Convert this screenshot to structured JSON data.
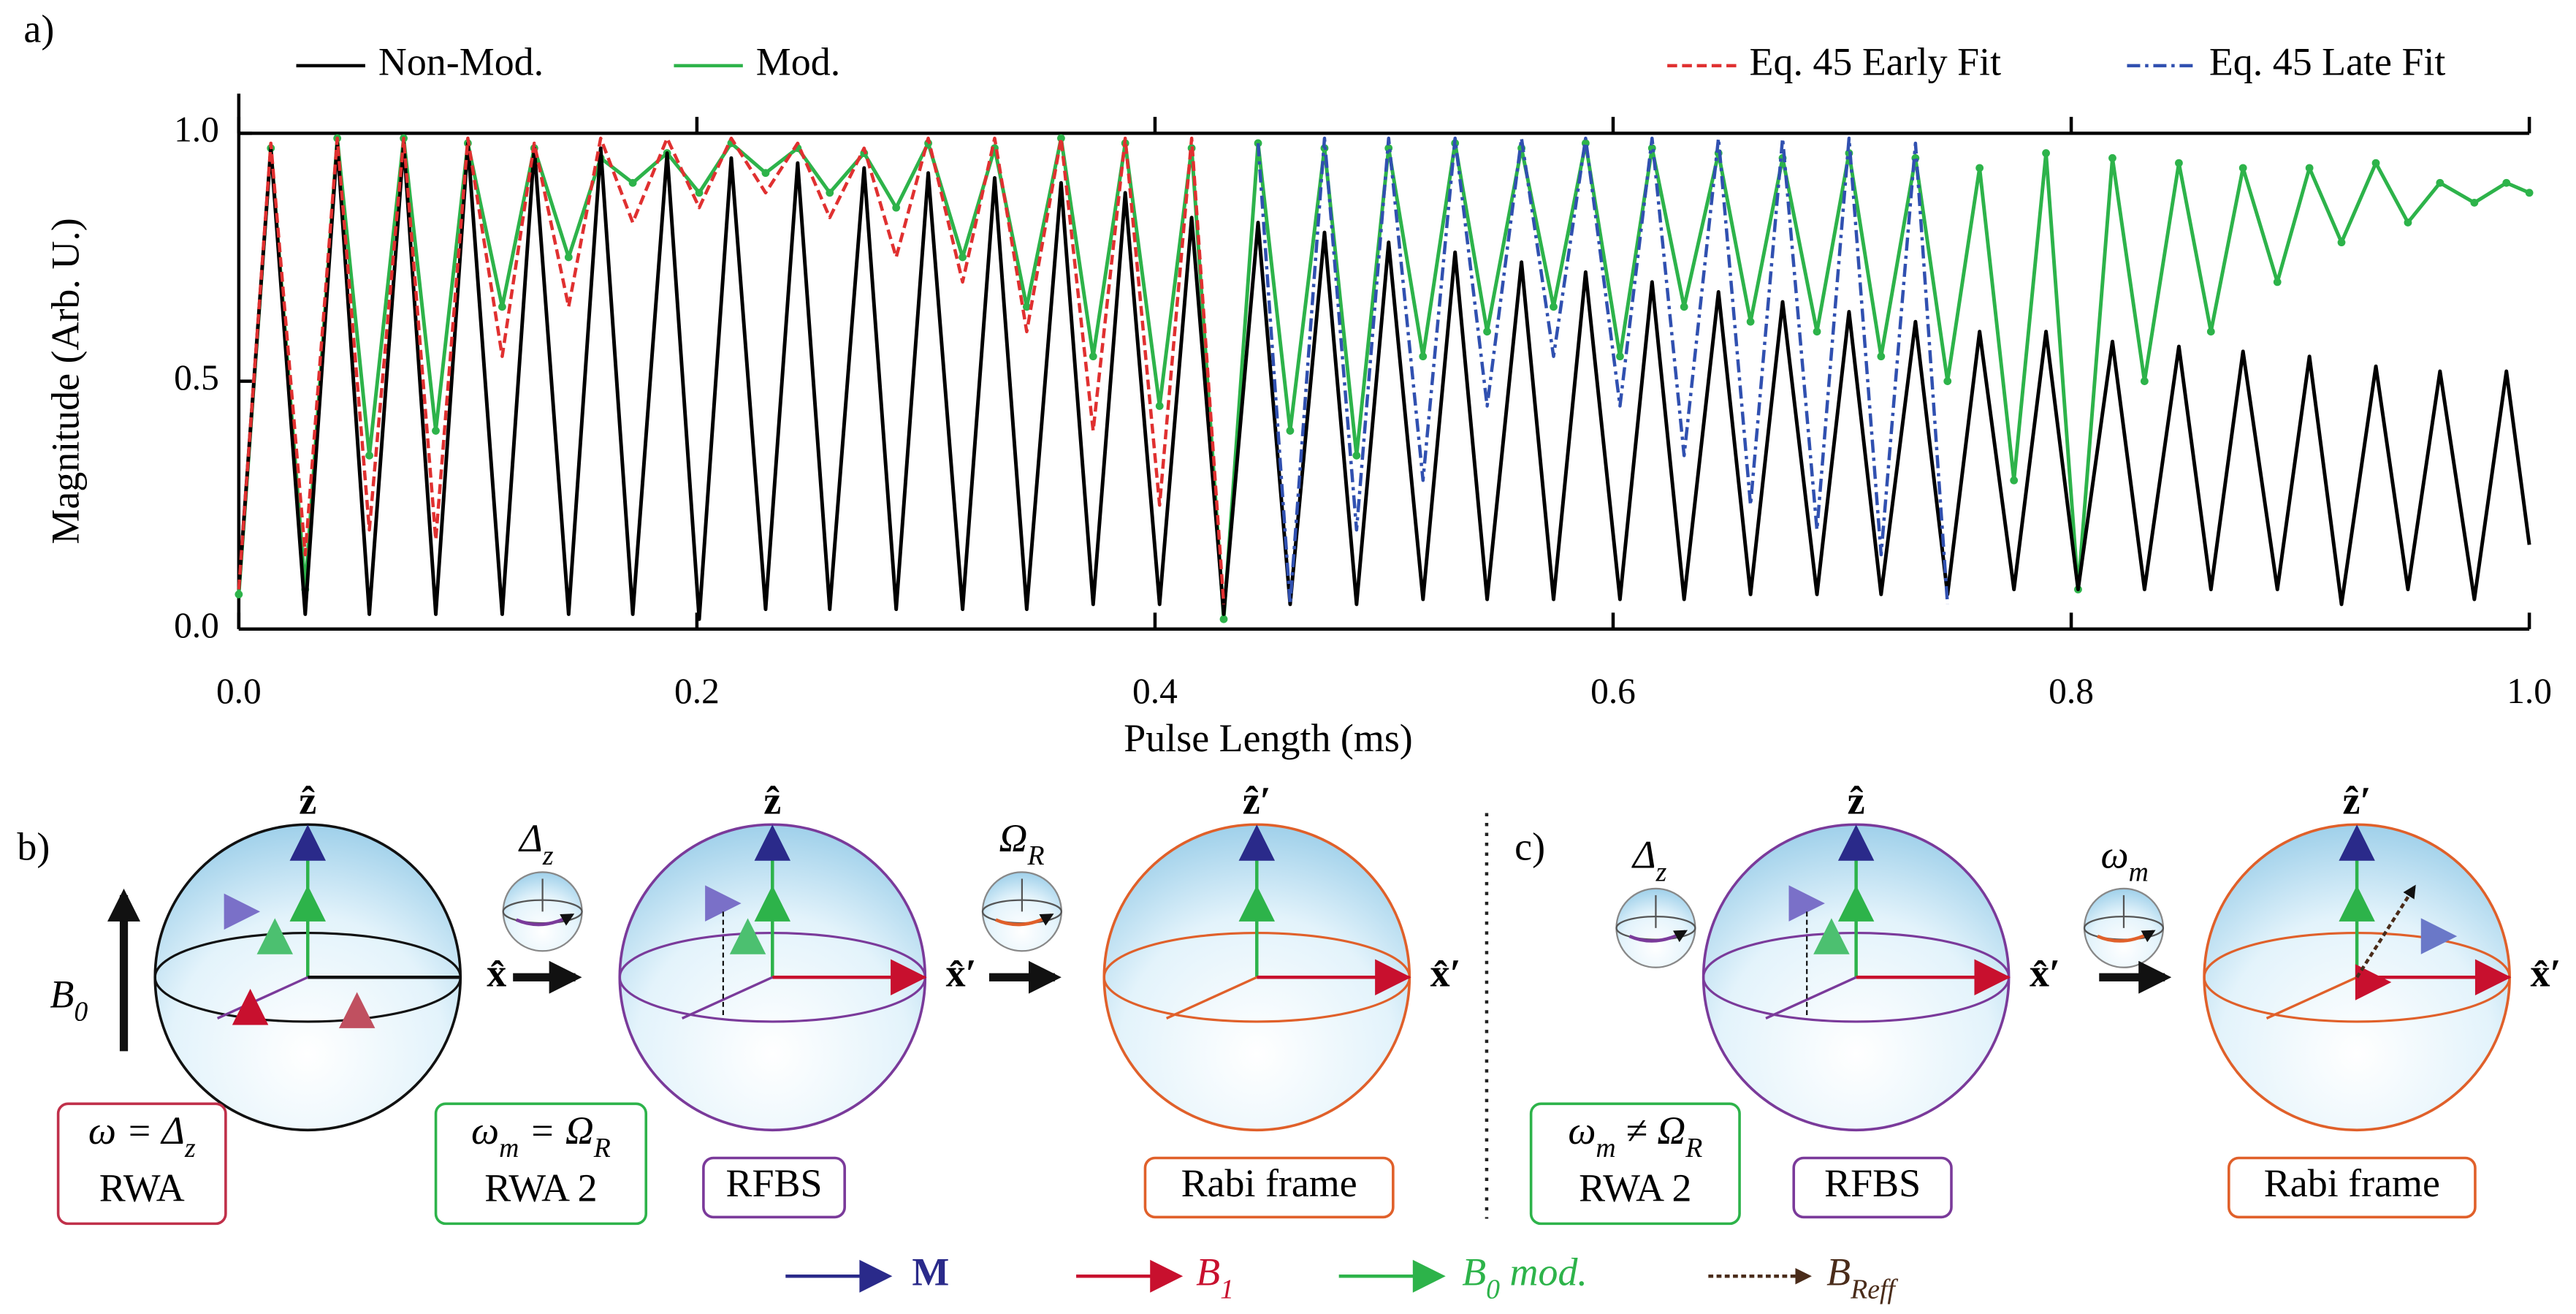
{
  "chart_data": {
    "type": "line",
    "panel_label": "a)",
    "x_label": "Pulse Length (ms)",
    "y_label": "Magnitude (Arb. U.)",
    "xlim": [
      0,
      1
    ],
    "ylim": [
      0,
      1.08
    ],
    "xticks": [
      {
        "value": 0,
        "label": "0.0"
      },
      {
        "value": 0.2,
        "label": "0.2"
      },
      {
        "value": 0.4,
        "label": "0.4"
      },
      {
        "value": 0.6,
        "label": "0.6"
      },
      {
        "value": 0.8,
        "label": "0.8"
      },
      {
        "value": 1,
        "label": "1.0"
      }
    ],
    "yticks": [
      {
        "value": 0,
        "label": "0.0"
      },
      {
        "value": 0.5,
        "label": "0.5"
      },
      {
        "value": 1,
        "label": "1.0"
      }
    ],
    "grid": false,
    "legend": "top",
    "series": [
      {
        "name": "Non-Mod.",
        "color": "#000000",
        "linestyle": "solid",
        "x": [
          0.0,
          0.014,
          0.029,
          0.043,
          0.057,
          0.072,
          0.086,
          0.1,
          0.115,
          0.129,
          0.144,
          0.158,
          0.172,
          0.187,
          0.201,
          0.215,
          0.23,
          0.244,
          0.258,
          0.273,
          0.287,
          0.301,
          0.316,
          0.33,
          0.344,
          0.359,
          0.373,
          0.387,
          0.402,
          0.416,
          0.43,
          0.445,
          0.459,
          0.474,
          0.488,
          0.502,
          0.517,
          0.531,
          0.545,
          0.56,
          0.574,
          0.588,
          0.603,
          0.617,
          0.631,
          0.646,
          0.66,
          0.674,
          0.689,
          0.703,
          0.717,
          0.732,
          0.746,
          0.76,
          0.775,
          0.789,
          0.803,
          0.818,
          0.832,
          0.847,
          0.861,
          0.875,
          0.89,
          0.904,
          0.918,
          0.933,
          0.947,
          0.961,
          0.976,
          0.99,
          1.0
        ],
        "values": [
          0.08,
          0.97,
          0.03,
          0.98,
          0.03,
          0.98,
          0.03,
          0.98,
          0.03,
          0.97,
          0.03,
          0.97,
          0.03,
          0.96,
          0.02,
          0.95,
          0.04,
          0.94,
          0.04,
          0.93,
          0.04,
          0.92,
          0.04,
          0.91,
          0.04,
          0.9,
          0.05,
          0.88,
          0.05,
          0.83,
          0.03,
          0.82,
          0.05,
          0.8,
          0.05,
          0.78,
          0.06,
          0.76,
          0.06,
          0.74,
          0.06,
          0.72,
          0.06,
          0.7,
          0.06,
          0.68,
          0.07,
          0.66,
          0.07,
          0.64,
          0.07,
          0.62,
          0.07,
          0.6,
          0.08,
          0.6,
          0.08,
          0.58,
          0.08,
          0.57,
          0.08,
          0.56,
          0.08,
          0.55,
          0.05,
          0.53,
          0.08,
          0.52,
          0.06,
          0.52,
          0.17
        ]
      },
      {
        "name": "Mod.",
        "color": "#2db34a",
        "linestyle": "solid",
        "x": [
          0.0,
          0.014,
          0.029,
          0.043,
          0.057,
          0.072,
          0.086,
          0.1,
          0.115,
          0.129,
          0.144,
          0.158,
          0.172,
          0.187,
          0.201,
          0.215,
          0.23,
          0.244,
          0.258,
          0.273,
          0.287,
          0.301,
          0.316,
          0.33,
          0.344,
          0.359,
          0.373,
          0.387,
          0.402,
          0.416,
          0.43,
          0.445,
          0.459,
          0.474,
          0.488,
          0.502,
          0.517,
          0.531,
          0.545,
          0.56,
          0.574,
          0.588,
          0.603,
          0.617,
          0.631,
          0.646,
          0.66,
          0.674,
          0.689,
          0.703,
          0.717,
          0.732,
          0.746,
          0.76,
          0.775,
          0.789,
          0.803,
          0.818,
          0.832,
          0.847,
          0.861,
          0.875,
          0.89,
          0.904,
          0.918,
          0.933,
          0.947,
          0.961,
          0.976,
          0.99,
          1.0
        ],
        "values": [
          0.07,
          0.97,
          0.08,
          0.99,
          0.35,
          0.99,
          0.4,
          0.98,
          0.65,
          0.97,
          0.75,
          0.95,
          0.9,
          0.96,
          0.88,
          0.98,
          0.92,
          0.97,
          0.88,
          0.96,
          0.85,
          0.98,
          0.75,
          0.97,
          0.65,
          0.99,
          0.55,
          0.98,
          0.45,
          0.97,
          0.02,
          0.98,
          0.4,
          0.97,
          0.35,
          0.97,
          0.55,
          0.98,
          0.6,
          0.97,
          0.65,
          0.98,
          0.55,
          0.97,
          0.65,
          0.96,
          0.62,
          0.95,
          0.6,
          0.96,
          0.55,
          0.95,
          0.5,
          0.93,
          0.3,
          0.96,
          0.08,
          0.95,
          0.5,
          0.94,
          0.6,
          0.93,
          0.7,
          0.93,
          0.78,
          0.94,
          0.82,
          0.9,
          0.86,
          0.9,
          0.88
        ]
      },
      {
        "name": "Eq. 45 Early Fit",
        "color": "#e03030",
        "linestyle": "dashed",
        "x": [
          0.0,
          0.014,
          0.029,
          0.043,
          0.057,
          0.072,
          0.086,
          0.1,
          0.115,
          0.129,
          0.144,
          0.158,
          0.172,
          0.187,
          0.201,
          0.215,
          0.23,
          0.244,
          0.258,
          0.273,
          0.287,
          0.301,
          0.316,
          0.33,
          0.344,
          0.359,
          0.373,
          0.387,
          0.402,
          0.416,
          0.43
        ],
        "values": [
          0.08,
          0.98,
          0.15,
          0.99,
          0.2,
          0.99,
          0.18,
          0.99,
          0.55,
          0.98,
          0.65,
          0.99,
          0.82,
          0.99,
          0.85,
          0.99,
          0.88,
          0.98,
          0.83,
          0.97,
          0.75,
          0.99,
          0.7,
          0.99,
          0.6,
          0.99,
          0.4,
          0.99,
          0.25,
          0.99,
          0.05
        ]
      },
      {
        "name": "Eq. 45 Late Fit",
        "color": "#3050b0",
        "linestyle": "dashdot",
        "x": [
          0.445,
          0.459,
          0.474,
          0.488,
          0.502,
          0.517,
          0.531,
          0.545,
          0.56,
          0.574,
          0.588,
          0.603,
          0.617,
          0.631,
          0.646,
          0.66,
          0.674,
          0.689,
          0.703,
          0.717,
          0.732,
          0.746
        ],
        "values": [
          0.98,
          0.05,
          0.99,
          0.2,
          0.99,
          0.3,
          0.99,
          0.45,
          0.99,
          0.55,
          0.99,
          0.45,
          0.99,
          0.35,
          0.99,
          0.25,
          0.99,
          0.2,
          0.99,
          0.15,
          0.98,
          0.05
        ]
      }
    ]
  },
  "diagram": {
    "panel_labels": [
      "b)",
      "c)"
    ],
    "b0": [
      {
        "t": "B"
      },
      {
        "sub": "0"
      }
    ],
    "spheres": [
      {
        "top": "ẑ",
        "right": "x̂",
        "color": "#111111"
      },
      {
        "top": "ẑ",
        "right": "x̂′",
        "color": "#7a3a9a"
      },
      {
        "top": "ẑ′",
        "right": "x̂′",
        "color": "#e0602a"
      },
      {
        "top": "ẑ",
        "right": "x̂′",
        "color": "#7a3a9a"
      },
      {
        "top": "ẑ′",
        "right": "x̂′",
        "color": "#e0602a"
      }
    ],
    "small_labels": [
      [
        {
          "t": "Δ"
        },
        {
          "sub": "z"
        }
      ],
      [
        {
          "t": "Ω"
        },
        {
          "sub": "R"
        }
      ],
      [
        {
          "t": "Δ"
        },
        {
          "sub": "z"
        }
      ],
      [
        {
          "t": "ω"
        },
        {
          "sub": "m"
        }
      ]
    ],
    "boxes": [
      {
        "color": "#c0304a",
        "lines": [
          [
            {
              "t": "ω = Δ"
            },
            {
              "sub": "z"
            }
          ],
          [
            {
              "t": "RWA"
            }
          ]
        ]
      },
      {
        "color": "#2db34a",
        "lines": [
          [
            {
              "t": "ω"
            },
            {
              "sub": "m"
            },
            {
              "t": " = Ω"
            },
            {
              "sub": "R"
            }
          ],
          [
            {
              "t": "RWA 2"
            }
          ]
        ]
      },
      {
        "color": "#7a3a9a",
        "lines": [
          [
            {
              "t": "RFBS"
            }
          ]
        ]
      },
      {
        "color": "#e0602a",
        "lines": [
          [
            {
              "t": "Rabi frame"
            }
          ]
        ]
      },
      {
        "color": "#2db34a",
        "lines": [
          [
            {
              "t": "ω"
            },
            {
              "sub": "m"
            },
            {
              "t": " ≠ Ω"
            },
            {
              "sub": "R"
            }
          ],
          [
            {
              "t": "RWA 2"
            }
          ]
        ]
      },
      {
        "color": "#7a3a9a",
        "lines": [
          [
            {
              "t": "RFBS"
            }
          ]
        ]
      },
      {
        "color": "#e0602a",
        "lines": [
          [
            {
              "t": "Rabi frame"
            }
          ]
        ]
      }
    ],
    "legend": [
      {
        "color": "#2a2a8a",
        "label": [
          {
            "t": "M"
          }
        ]
      },
      {
        "color": "#c8102e",
        "label": [
          {
            "t": "B"
          },
          {
            "sub": "1"
          }
        ]
      },
      {
        "color": "#2db34a",
        "label": [
          {
            "t": "B"
          },
          {
            "sub": "0"
          },
          {
            "t": " mod."
          }
        ]
      },
      {
        "color": "#4a2c1a",
        "label": [
          {
            "t": "B"
          },
          {
            "sub": "Reff"
          }
        ]
      }
    ]
  }
}
